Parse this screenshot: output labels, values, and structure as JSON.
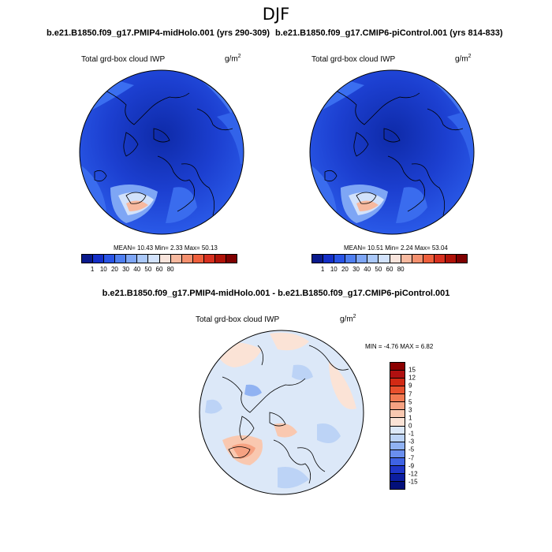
{
  "season": "DJF",
  "panels": [
    {
      "case": "b.e21.B1850.f09_g17.PMIP4-midHolo.001 (yrs 290-309)",
      "label": "Total grd-box cloud IWP",
      "units": "g/m",
      "units_exp": "2",
      "stats": "MEAN=  10.43  Min=   2.33  Max=  50.13"
    },
    {
      "case": "b.e21.B1850.f09_g17.CMIP6-piControl.001 (yrs 814-833)",
      "label": "Total grd-box cloud IWP",
      "units": "g/m",
      "units_exp": "2",
      "stats": "MEAN=  10.51  Min=   2.24  Max=  53.04"
    }
  ],
  "colorbar": {
    "ticks": [
      "1",
      "10",
      "20",
      "30",
      "40",
      "50",
      "60",
      "80"
    ],
    "colors": [
      "#0a1a8c",
      "#1530c8",
      "#2a55e6",
      "#4f7ff0",
      "#7ea6f5",
      "#aac8f8",
      "#d2e2fb",
      "#f8e4dc",
      "#f7b99f",
      "#f4906e",
      "#ef5f3c",
      "#d7301f",
      "#b01208",
      "#7f0000"
    ]
  },
  "diff": {
    "title": "b.e21.B1850.f09_g17.PMIP4-midHolo.001 - b.e21.B1850.f09_g17.CMIP6-piControl.001",
    "label": "Total grd-box cloud IWP",
    "units": "g/m",
    "units_exp": "2",
    "stats": "MIN =  -4.76 MAX =   6.82",
    "ticks": [
      "15",
      "12",
      "9",
      "7",
      "5",
      "3",
      "1",
      "0",
      "-1",
      "-3",
      "-5",
      "-7",
      "-9",
      "-12",
      "-15"
    ],
    "colors": [
      "#8b0000",
      "#b01010",
      "#d22a14",
      "#e8502d",
      "#f17a52",
      "#f6a282",
      "#f9c8b0",
      "#fbe3d6",
      "#dce8f8",
      "#bcd3f6",
      "#90b2f2",
      "#6a8fee",
      "#3f63e4",
      "#1f36c8",
      "#0c1ea0",
      "#03107a"
    ]
  }
}
